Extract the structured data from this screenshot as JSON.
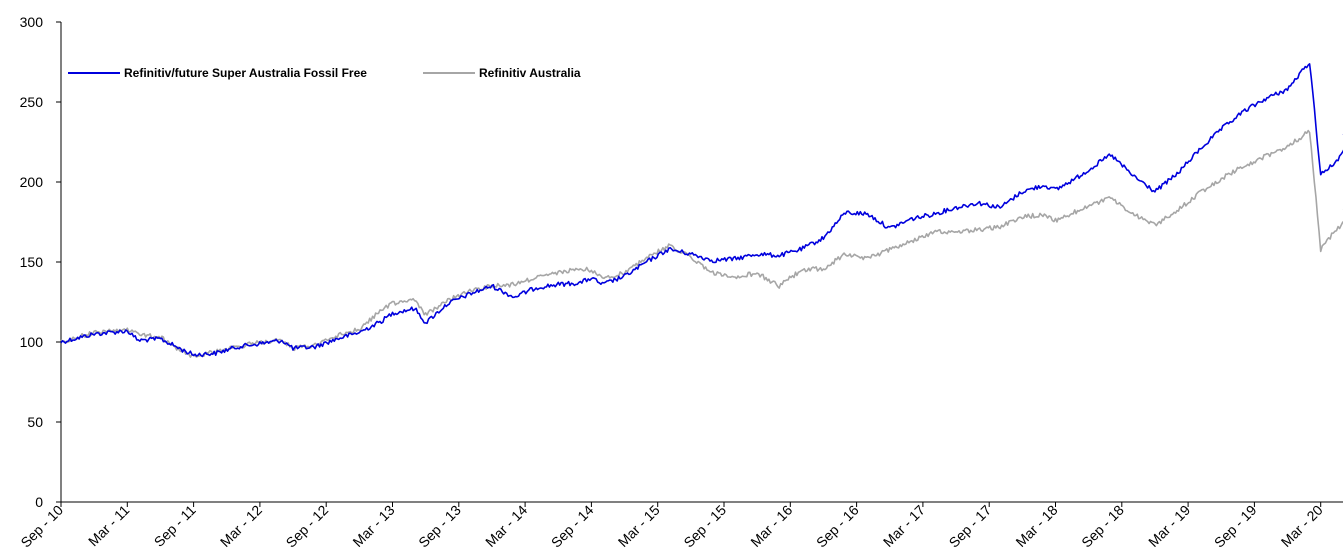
{
  "chart_data": {
    "type": "line",
    "title": "",
    "xlabel": "",
    "ylabel": "",
    "ylim": [
      0,
      300
    ],
    "y_ticks": [
      0,
      50,
      100,
      150,
      200,
      250,
      300
    ],
    "grid": false,
    "legend_position": "top-left",
    "x_tick_labels": [
      "Sep - 10",
      "Mar - 11",
      "Sep - 11",
      "Mar - 12",
      "Sep - 12",
      "Mar - 13",
      "Sep - 13",
      "Mar - 14",
      "Sep - 14",
      "Mar - 15",
      "Sep - 15",
      "Mar - 16",
      "Sep - 16",
      "Mar - 17",
      "Sep - 17",
      "Mar - 18",
      "Sep - 18",
      "Mar - 19",
      "Sep - 19",
      "Mar - 20"
    ],
    "x_start": "Sep 2010",
    "x_end": "Jun 2020",
    "series": [
      {
        "name": "Refinitiv/future Super Australia Fossil Free",
        "color": "#0000dd",
        "points": [
          [
            "2010-09",
            100
          ],
          [
            "2010-12",
            105
          ],
          [
            "2011-03",
            107
          ],
          [
            "2011-04",
            101
          ],
          [
            "2011-06",
            102
          ],
          [
            "2011-08",
            95
          ],
          [
            "2011-09",
            92
          ],
          [
            "2011-11",
            93
          ],
          [
            "2012-01",
            97
          ],
          [
            "2012-03",
            99
          ],
          [
            "2012-05",
            101
          ],
          [
            "2012-06",
            96
          ],
          [
            "2012-08",
            97
          ],
          [
            "2012-10",
            102
          ],
          [
            "2012-12",
            106
          ],
          [
            "2013-02",
            113
          ],
          [
            "2013-03",
            118
          ],
          [
            "2013-05",
            121
          ],
          [
            "2013-06",
            112
          ],
          [
            "2013-08",
            124
          ],
          [
            "2013-10",
            130
          ],
          [
            "2013-12",
            135
          ],
          [
            "2014-02",
            128
          ],
          [
            "2014-04",
            134
          ],
          [
            "2014-06",
            136
          ],
          [
            "2014-08",
            137
          ],
          [
            "2014-09",
            140
          ],
          [
            "2014-10",
            136
          ],
          [
            "2014-12",
            141
          ],
          [
            "2015-02",
            150
          ],
          [
            "2015-04",
            158
          ],
          [
            "2015-06",
            155
          ],
          [
            "2015-08",
            151
          ],
          [
            "2015-10",
            152
          ],
          [
            "2015-12",
            155
          ],
          [
            "2016-02",
            154
          ],
          [
            "2016-04",
            158
          ],
          [
            "2016-06",
            165
          ],
          [
            "2016-08",
            181
          ],
          [
            "2016-10",
            180
          ],
          [
            "2016-12",
            171
          ],
          [
            "2017-02",
            177
          ],
          [
            "2017-04",
            180
          ],
          [
            "2017-06",
            184
          ],
          [
            "2017-08",
            187
          ],
          [
            "2017-10",
            184
          ],
          [
            "2017-12",
            194
          ],
          [
            "2018-02",
            198
          ],
          [
            "2018-03",
            195
          ],
          [
            "2018-05",
            203
          ],
          [
            "2018-08",
            217
          ],
          [
            "2018-10",
            204
          ],
          [
            "2018-12",
            194
          ],
          [
            "2019-02",
            205
          ],
          [
            "2019-04",
            220
          ],
          [
            "2019-06",
            233
          ],
          [
            "2019-08",
            244
          ],
          [
            "2019-10",
            252
          ],
          [
            "2019-12",
            258
          ],
          [
            "2020-02",
            275
          ],
          [
            "2020-03",
            205
          ],
          [
            "2020-04",
            210
          ],
          [
            "2020-05",
            218
          ],
          [
            "2020-06",
            230
          ]
        ]
      },
      {
        "name": "Refinitiv Australia",
        "color": "#a6a6a6",
        "points": [
          [
            "2010-09",
            100
          ],
          [
            "2010-12",
            106
          ],
          [
            "2011-03",
            108
          ],
          [
            "2011-04",
            105
          ],
          [
            "2011-06",
            103
          ],
          [
            "2011-08",
            94
          ],
          [
            "2011-09",
            91
          ],
          [
            "2011-11",
            94
          ],
          [
            "2012-01",
            97
          ],
          [
            "2012-03",
            100
          ],
          [
            "2012-05",
            101
          ],
          [
            "2012-06",
            96
          ],
          [
            "2012-08",
            98
          ],
          [
            "2012-10",
            104
          ],
          [
            "2012-12",
            108
          ],
          [
            "2013-02",
            120
          ],
          [
            "2013-03",
            124
          ],
          [
            "2013-05",
            127
          ],
          [
            "2013-06",
            117
          ],
          [
            "2013-08",
            126
          ],
          [
            "2013-10",
            132
          ],
          [
            "2013-12",
            135
          ],
          [
            "2014-02",
            136
          ],
          [
            "2014-04",
            140
          ],
          [
            "2014-06",
            143
          ],
          [
            "2014-08",
            146
          ],
          [
            "2014-09",
            145
          ],
          [
            "2014-10",
            140
          ],
          [
            "2014-12",
            143
          ],
          [
            "2015-02",
            153
          ],
          [
            "2015-04",
            160
          ],
          [
            "2015-06",
            153
          ],
          [
            "2015-08",
            143
          ],
          [
            "2015-10",
            141
          ],
          [
            "2015-12",
            143
          ],
          [
            "2016-02",
            135
          ],
          [
            "2016-04",
            145
          ],
          [
            "2016-06",
            146
          ],
          [
            "2016-08",
            155
          ],
          [
            "2016-10",
            152
          ],
          [
            "2016-12",
            158
          ],
          [
            "2017-02",
            163
          ],
          [
            "2017-04",
            169
          ],
          [
            "2017-06",
            169
          ],
          [
            "2017-08",
            170
          ],
          [
            "2017-10",
            172
          ],
          [
            "2017-12",
            178
          ],
          [
            "2018-02",
            180
          ],
          [
            "2018-03",
            176
          ],
          [
            "2018-05",
            182
          ],
          [
            "2018-08",
            190
          ],
          [
            "2018-10",
            180
          ],
          [
            "2018-12",
            173
          ],
          [
            "2019-02",
            182
          ],
          [
            "2019-04",
            193
          ],
          [
            "2019-06",
            202
          ],
          [
            "2019-08",
            210
          ],
          [
            "2019-10",
            216
          ],
          [
            "2019-12",
            222
          ],
          [
            "2020-02",
            232
          ],
          [
            "2020-03",
            158
          ],
          [
            "2020-04",
            167
          ],
          [
            "2020-05",
            174
          ],
          [
            "2020-06",
            183
          ]
        ]
      }
    ]
  }
}
